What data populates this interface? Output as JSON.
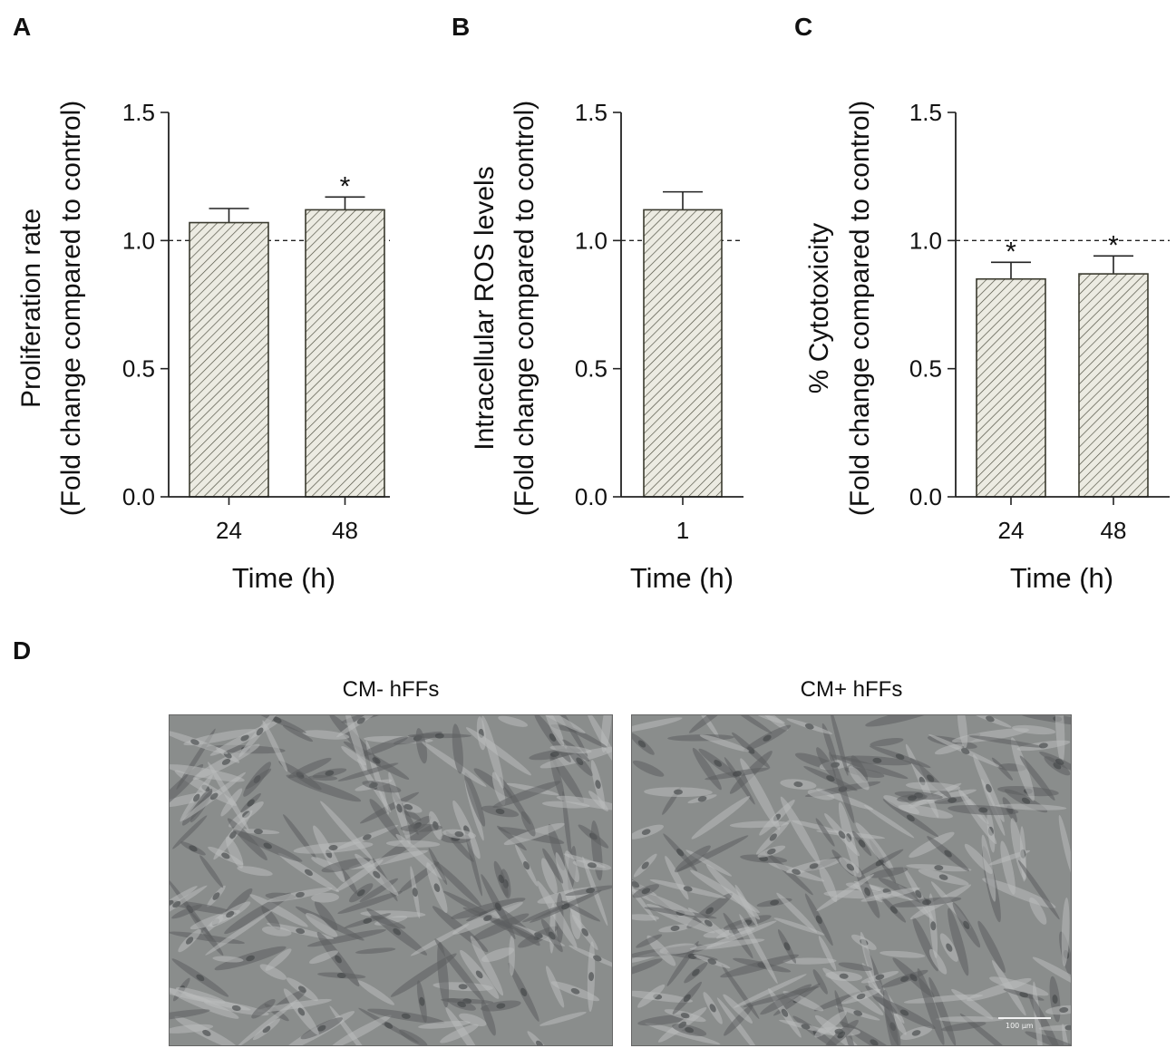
{
  "colors": {
    "bar_fill": "#ecebe2",
    "bar_stroke": "#3a3a2e",
    "hatch": "#4a4a3c",
    "axis": "#222222",
    "micro_bg": "#8a8d8c"
  },
  "chart_data": [
    {
      "panel": "A",
      "type": "bar",
      "ylabel_line1": "Proliferation rate",
      "ylabel_line2": "(Fold change compared to control)",
      "xlabel": "Time (h)",
      "categories": [
        "24",
        "48"
      ],
      "values": [
        1.07,
        1.12
      ],
      "errors": [
        0.055,
        0.05
      ],
      "significance": [
        "",
        "*"
      ],
      "ylim": [
        0,
        1.5
      ],
      "yticks": [
        0.0,
        0.5,
        1.0,
        1.5
      ],
      "ytick_labels": [
        "0.0",
        "0.5",
        "1.0",
        "1.5"
      ],
      "reference_line": 1.0
    },
    {
      "panel": "B",
      "type": "bar",
      "ylabel_line1": "Intracellular ROS levels",
      "ylabel_line2": "(Fold change compared to control)",
      "xlabel": "Time (h)",
      "categories": [
        "1"
      ],
      "values": [
        1.12
      ],
      "errors": [
        0.07
      ],
      "significance": [
        ""
      ],
      "ylim": [
        0,
        1.5
      ],
      "yticks": [
        0.0,
        0.5,
        1.0,
        1.5
      ],
      "ytick_labels": [
        "0.0",
        "0.5",
        "1.0",
        "1.5"
      ],
      "reference_line": 1.0
    },
    {
      "panel": "C",
      "type": "bar",
      "ylabel_line1": "% Cytotoxicity",
      "ylabel_line2": "(Fold change compared to control)",
      "xlabel": "Time (h)",
      "categories": [
        "24",
        "48"
      ],
      "values": [
        0.85,
        0.87
      ],
      "errors": [
        0.065,
        0.07
      ],
      "significance": [
        "*",
        "*"
      ],
      "ylim": [
        0,
        1.5
      ],
      "yticks": [
        0.0,
        0.5,
        1.0,
        1.5
      ],
      "ytick_labels": [
        "0.0",
        "0.5",
        "1.0",
        "1.5"
      ],
      "reference_line": 1.0
    }
  ],
  "panel_d": {
    "letter": "D",
    "images": [
      {
        "title": "CM- hFFs"
      },
      {
        "title": "CM+ hFFs",
        "scale_bar_label": "100 µm"
      }
    ]
  }
}
